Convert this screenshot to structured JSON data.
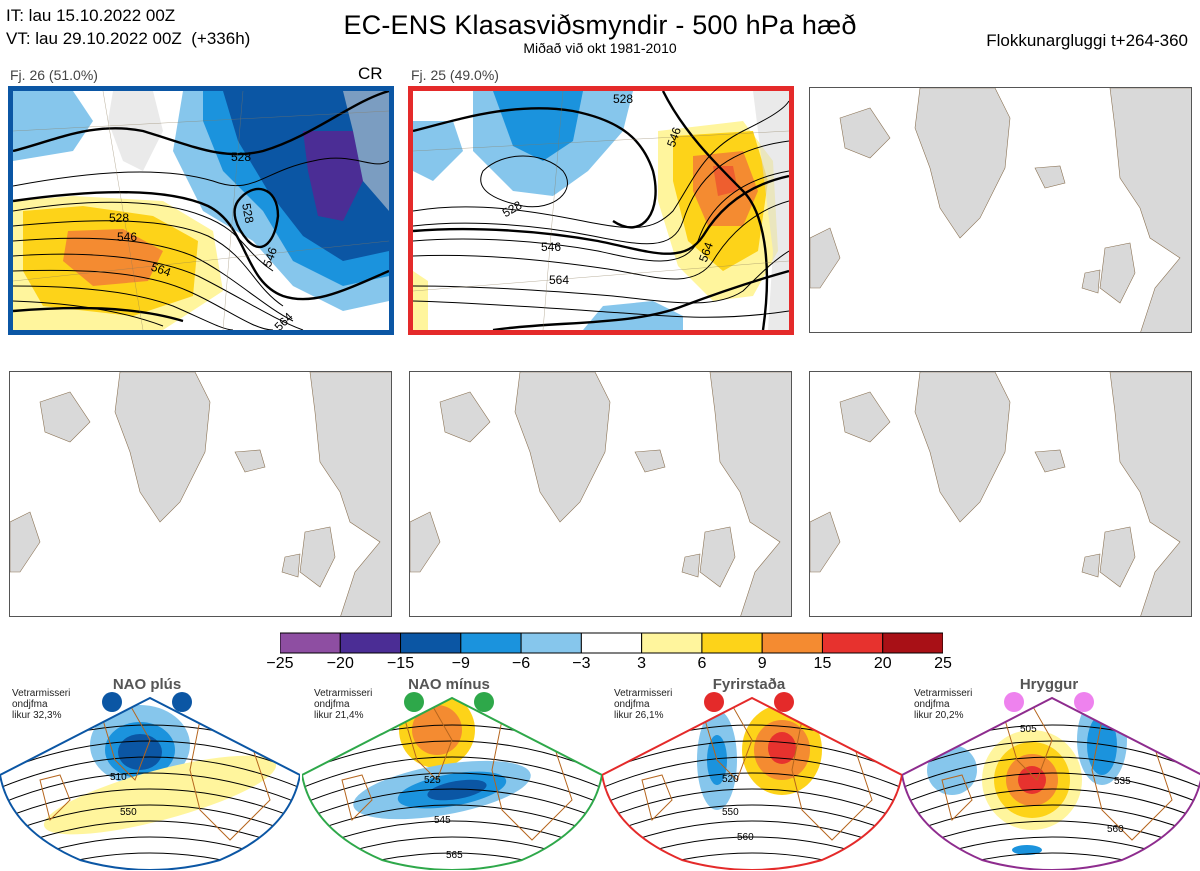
{
  "header": {
    "it_line": "IT: lau 15.10.2022 00Z",
    "vt_line": "VT: lau 29.10.2022 00Z  (+336h)",
    "title": "EC-ENS Klasasviðsmyndir - 500 hPa hæð",
    "subtitle": "Miðað við okt 1981-2010",
    "cluster_window": "Flokkunargluggi t+264-360"
  },
  "panels": [
    {
      "label": "Fj. 26 (51.0%)",
      "regime_code": "CR",
      "border_color": "#0b56a4",
      "contour_labels": [
        "528",
        "528",
        "528",
        "546",
        "564",
        "546",
        "564"
      ]
    },
    {
      "label": "Fj. 25 (49.0%)",
      "regime_code": "",
      "border_color": "#e42a2a",
      "contour_labels": [
        "528",
        "546",
        "528",
        "546",
        "564",
        "564"
      ]
    }
  ],
  "empty_panel_count": 4,
  "colorbar": {
    "ticks": [
      "−25",
      "−20",
      "−15",
      "−9",
      "−6",
      "−3",
      "3",
      "6",
      "9",
      "15",
      "20",
      "25"
    ],
    "colors": [
      "#8e4ea2",
      "#4b2d95",
      "#0b56a4",
      "#1b93dd",
      "#86c6ec",
      "#ffffff",
      "#fff59d",
      "#fdd319",
      "#f48b31",
      "#e7322e",
      "#a81016"
    ]
  },
  "regimes": [
    {
      "name": "NAO plús",
      "info": [
        "Vetrarmisseri",
        "ondjfma",
        "likur 32,3%"
      ],
      "color": "#0b56a4",
      "dot_color": "#0b56a4",
      "contours": [
        "510",
        "550"
      ]
    },
    {
      "name": "NAO mínus",
      "info": [
        "Vetrarmisseri",
        "ondjfma",
        "likur 21,4%"
      ],
      "color": "#2ea84a",
      "dot_color": "#2ea84a",
      "contours": [
        "525",
        "545",
        "565"
      ]
    },
    {
      "name": "Fyrirstaða",
      "info": [
        "Vetrarmisseri",
        "ondjfma",
        "likur 26,1%"
      ],
      "color": "#e42a2a",
      "dot_color": "#e42a2a",
      "contours": [
        "520",
        "550",
        "560"
      ]
    },
    {
      "name": "Hryggur",
      "info": [
        "Vetrarmisseri",
        "ondjfma",
        "likur 20,2%"
      ],
      "color": "#8e2c8e",
      "dot_color": "#ee82ee",
      "contours": [
        "505",
        "535",
        "560"
      ]
    }
  ]
}
